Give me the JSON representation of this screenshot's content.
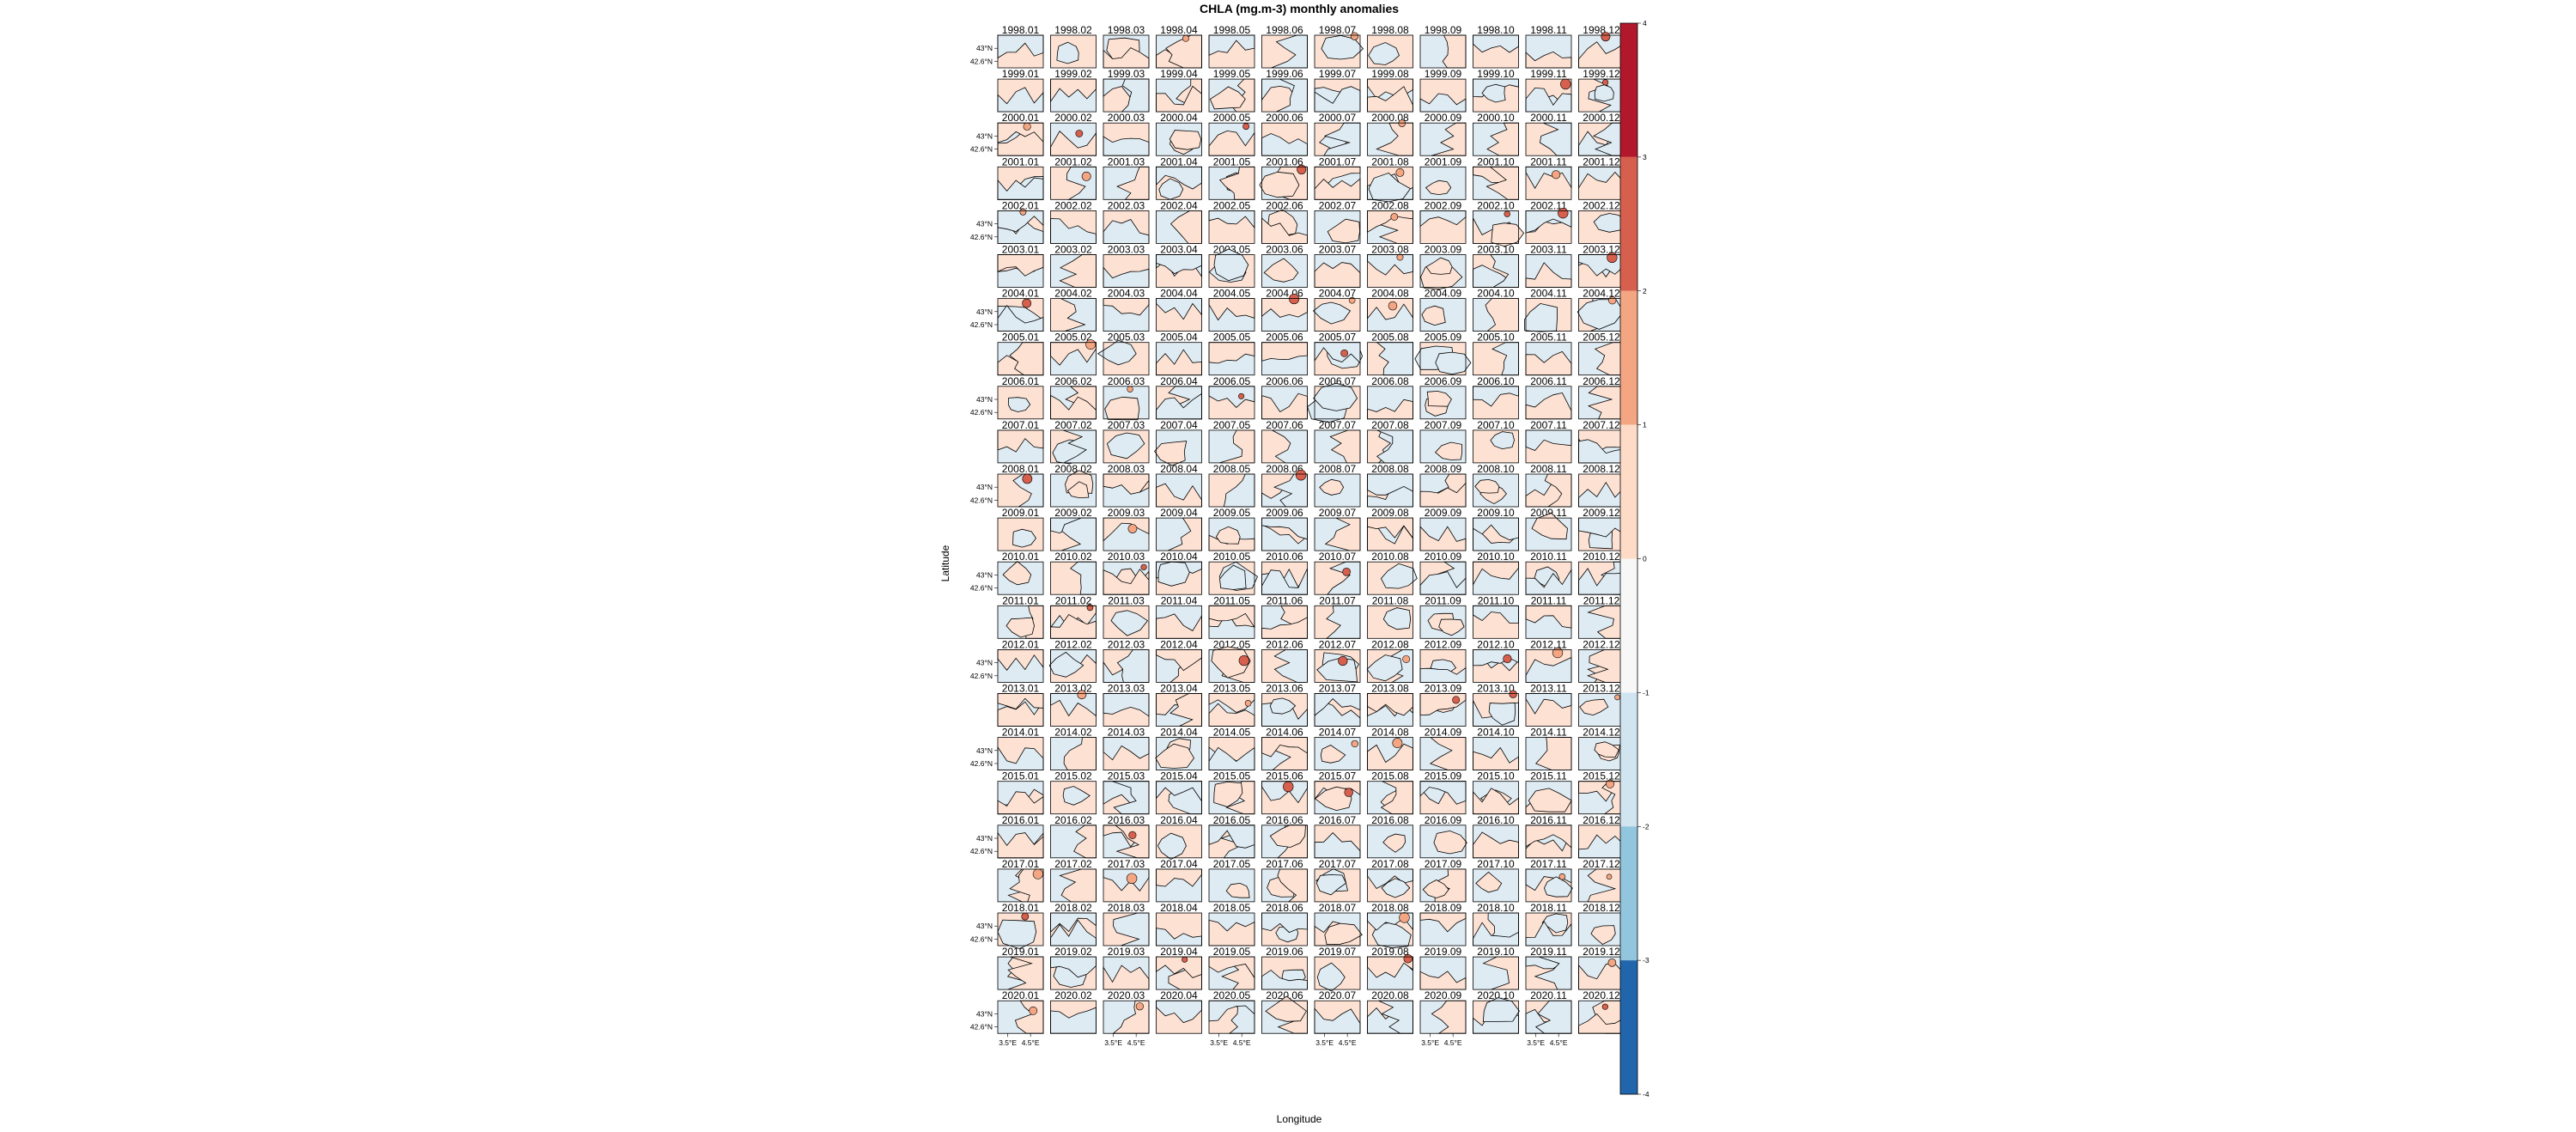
{
  "chart_data": {
    "type": "heatmap",
    "title": "CHLA (mg.m-3) monthly anomalies",
    "xlabel": "Longitude",
    "ylabel": "Latitude",
    "years": [
      "1998",
      "1999",
      "2000",
      "2001",
      "2002",
      "2003",
      "2004",
      "2005",
      "2006",
      "2007",
      "2008",
      "2009",
      "2010",
      "2011",
      "2012",
      "2013",
      "2014",
      "2015",
      "2016",
      "2017",
      "2018",
      "2019",
      "2020"
    ],
    "months": [
      "01",
      "02",
      "03",
      "04",
      "05",
      "06",
      "07",
      "08",
      "09",
      "10",
      "11",
      "12"
    ],
    "x_tick_labels": [
      "3.5°E",
      "4.5°E"
    ],
    "y_tick_labels": [
      "43°N",
      "42.6°N"
    ],
    "colorbar": {
      "range": [
        -4,
        4
      ],
      "tick_labels": [
        "4",
        "3",
        "2",
        "1",
        "0",
        "-1",
        "-2",
        "-3",
        "-4"
      ],
      "levels": [
        {
          "min": 3,
          "max": 4,
          "color": "#b2182b"
        },
        {
          "min": 2,
          "max": 3,
          "color": "#d6604d"
        },
        {
          "min": 1,
          "max": 2,
          "color": "#f4a582"
        },
        {
          "min": 0,
          "max": 1,
          "color": "#fddbc7"
        },
        {
          "min": -1,
          "max": 0,
          "color": "#f7f7f7"
        },
        {
          "min": -2,
          "max": -1,
          "color": "#d1e5f0"
        },
        {
          "min": -3,
          "max": -2,
          "color": "#92c5de"
        },
        {
          "min": -4,
          "max": -3,
          "color": "#2166ac"
        }
      ]
    }
  }
}
